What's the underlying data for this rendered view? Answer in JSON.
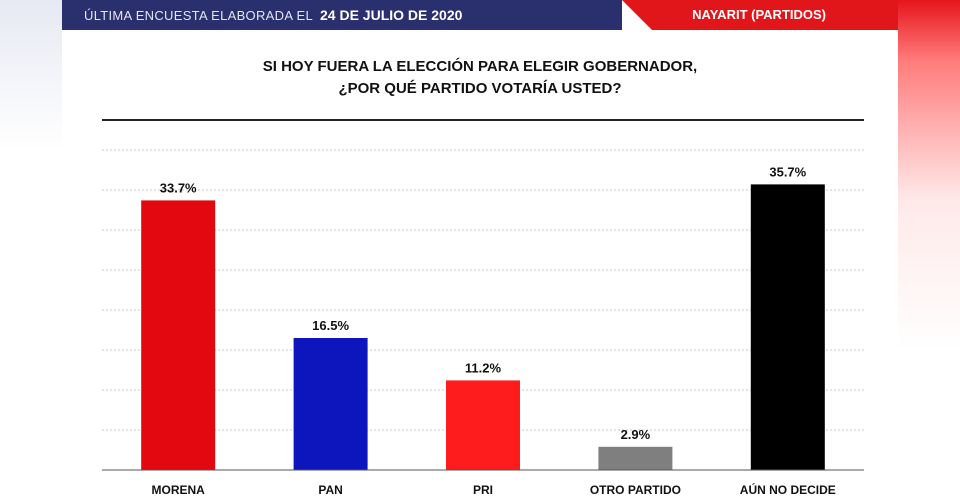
{
  "header": {
    "date_prefix": "ÚLTIMA ENCUESTA ELABORADA EL",
    "date_value": "24 DE JULIO DE 2020",
    "region": "NAYARIT (PARTIDOS)"
  },
  "chart_data": {
    "type": "bar",
    "title_line1": "SI HOY FUERA LA ELECCIÓN PARA ELEGIR GOBERNADOR,",
    "title_line2": "¿POR QUÉ PARTIDO VOTARÍA USTED?",
    "categories": [
      "MORENA",
      "PAN",
      "PRI",
      "OTRO PARTIDO",
      "AÚN NO DECIDE"
    ],
    "values": [
      33.7,
      16.5,
      11.2,
      2.9,
      35.7
    ],
    "value_labels": [
      "33.7%",
      "16.5%",
      "11.2%",
      "2.9%",
      "35.7%"
    ],
    "colors": [
      "#e3070f",
      "#0d16bd",
      "#ff1c1c",
      "#7f7f7f",
      "#000000"
    ],
    "ylim": [
      0,
      40
    ],
    "grid": true,
    "xlabel": "",
    "ylabel": ""
  }
}
